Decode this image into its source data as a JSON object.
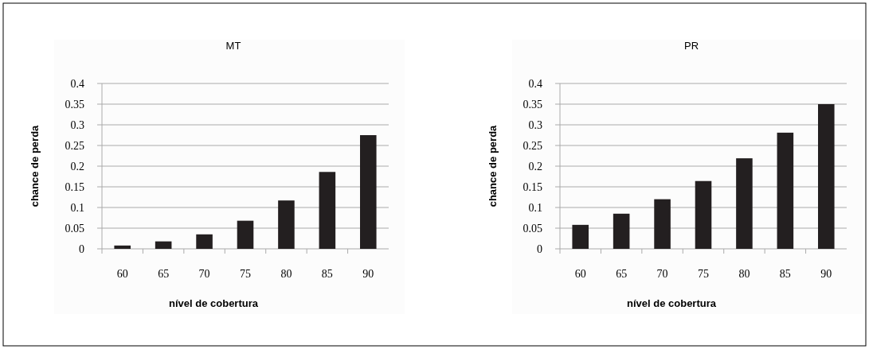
{
  "chart_data": [
    {
      "type": "bar",
      "title": "MT",
      "xlabel": "nível de cobertura",
      "ylabel": "chance de perda",
      "categories": [
        "60",
        "65",
        "70",
        "75",
        "80",
        "85",
        "90"
      ],
      "values": [
        0.008,
        0.018,
        0.035,
        0.068,
        0.117,
        0.186,
        0.275
      ],
      "color": "#231f20",
      "ylim": [
        0,
        0.4
      ],
      "yticks": [
        0,
        0.05,
        0.1,
        0.15,
        0.2,
        0.25,
        0.3,
        0.35,
        0.4
      ],
      "grid": "y"
    },
    {
      "type": "bar",
      "title": "PR",
      "xlabel": "nível de cobertura",
      "ylabel": "chance de perda",
      "categories": [
        "60",
        "65",
        "70",
        "75",
        "80",
        "85",
        "90"
      ],
      "values": [
        0.058,
        0.085,
        0.12,
        0.164,
        0.219,
        0.281,
        0.35
      ],
      "color": "#231f20",
      "ylim": [
        0,
        0.4
      ],
      "yticks": [
        0,
        0.05,
        0.1,
        0.15,
        0.2,
        0.25,
        0.3,
        0.35,
        0.4
      ],
      "grid": "y"
    }
  ]
}
